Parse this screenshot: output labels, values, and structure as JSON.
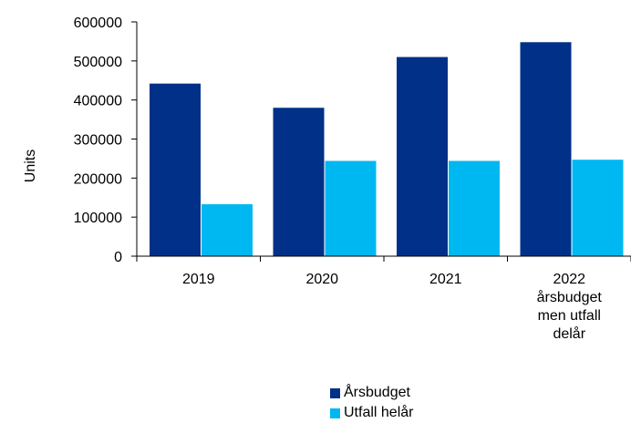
{
  "chart_data": {
    "type": "bar",
    "ylabel": "Units",
    "xlabel": "",
    "title": "",
    "ylim": [
      0,
      600000
    ],
    "yticks": [
      "0",
      "100000",
      "200000",
      "300000",
      "400000",
      "500000",
      "600000"
    ],
    "categories": [
      [
        "2019"
      ],
      [
        "2020"
      ],
      [
        "2021"
      ],
      [
        "2022",
        "årsbudget",
        "men utfall",
        "delår"
      ]
    ],
    "series": [
      {
        "name": "Årsbudget",
        "color": "#003087",
        "values": [
          442000,
          380000,
          510000,
          548000
        ]
      },
      {
        "name": "Utfall helår",
        "color": "#00B8F1",
        "values": [
          133000,
          244000,
          244000,
          247000
        ]
      }
    ],
    "grid": false,
    "legend": "bottom-center"
  }
}
